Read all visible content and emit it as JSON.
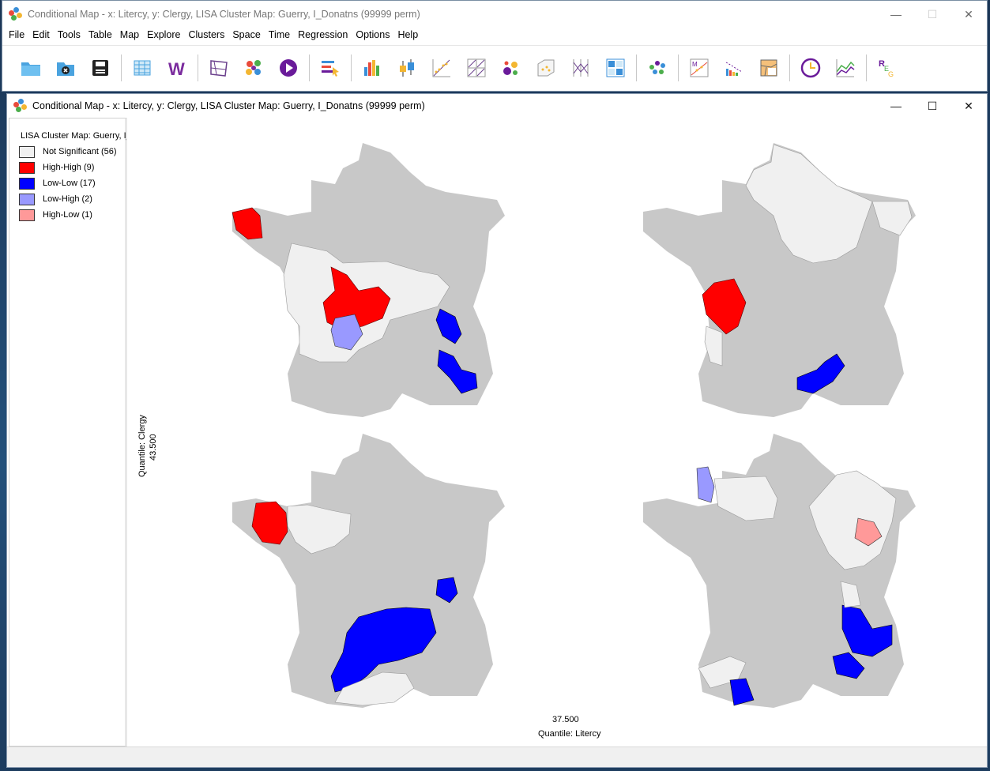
{
  "main_window": {
    "title": "Conditional Map - x: Litercy, y: Clergy,  LISA Cluster Map: Guerry, I_Donatns (99999 perm)",
    "menu": [
      "File",
      "Edit",
      "Tools",
      "Table",
      "Map",
      "Explore",
      "Clusters",
      "Space",
      "Time",
      "Regression",
      "Options",
      "Help"
    ]
  },
  "child_window": {
    "title": "Conditional Map - x: Litercy, y: Clergy,  LISA Cluster Map: Guerry, I_Donatns (99999 perm)"
  },
  "legend": {
    "title": "LISA Cluster Map: Guerry, I_",
    "items": [
      {
        "label": "Not Significant (56)",
        "color": "#f0f0f0"
      },
      {
        "label": "High-High (9)",
        "color": "#ff0000"
      },
      {
        "label": "Low-Low (17)",
        "color": "#0000ff"
      },
      {
        "label": "Low-High (2)",
        "color": "#9999ff"
      },
      {
        "label": "High-Low (1)",
        "color": "#ff9999"
      }
    ]
  },
  "axes": {
    "y_label": "Quantile: Clergy",
    "y_value": "43.500",
    "x_value": "37.500",
    "x_label": "Quantile: Litercy"
  },
  "colors": {
    "base": "#c8c8c8",
    "not_significant": "#f0f0f0",
    "high_high": "#ff0000",
    "low_low": "#0000ff",
    "low_high": "#9999ff",
    "high_low": "#ff9999"
  }
}
